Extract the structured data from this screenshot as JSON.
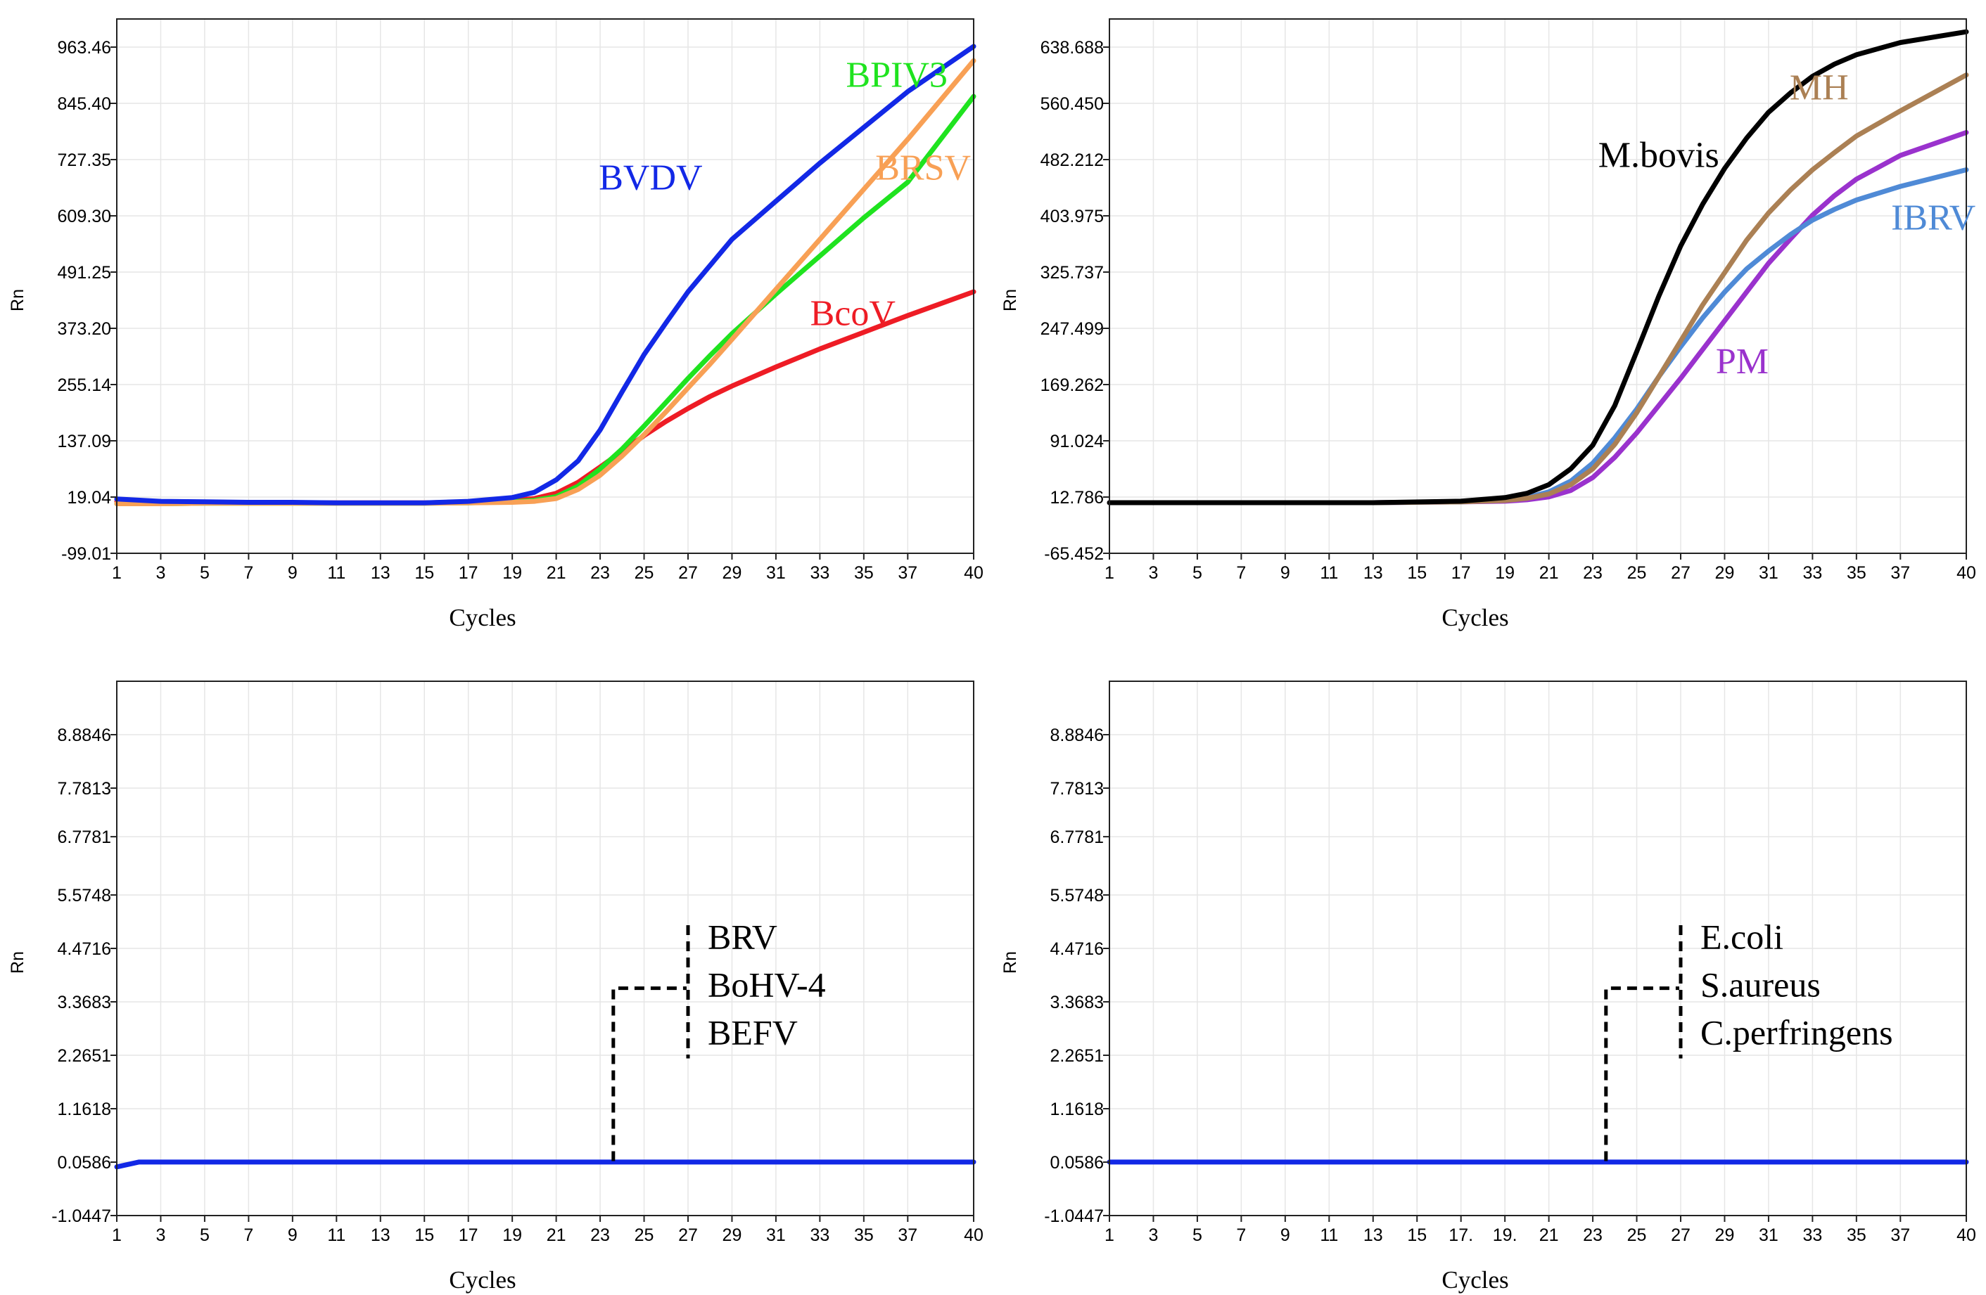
{
  "chart_data": [
    {
      "type": "line",
      "panel": "top-left",
      "xlabel": "Cycles",
      "ylabel": "Rn",
      "xlim": [
        1,
        40
      ],
      "ylim": [
        -99.01,
        1022.49
      ],
      "x_ticks": [
        1,
        3,
        5,
        7,
        9,
        11,
        13,
        15,
        17,
        19,
        21,
        23,
        25,
        27,
        29,
        31,
        33,
        35,
        37,
        40
      ],
      "y_ticks": [
        "-99.01",
        "19.04",
        "137.09",
        "255.14",
        "373.20",
        "491.25",
        "609.30",
        "727.35",
        "845.40",
        "963.46"
      ],
      "x": [
        1,
        3,
        5,
        7,
        9,
        11,
        13,
        15,
        17,
        19,
        20,
        21,
        22,
        23,
        24,
        25,
        26,
        27,
        28,
        29,
        31,
        33,
        35,
        37,
        40
      ],
      "series": [
        {
          "name": "BcoV",
          "color": "#ee1c25",
          "label_pos": [
            34.5,
            380
          ],
          "values": [
            10,
            8,
            8,
            7,
            7,
            7,
            7,
            7,
            9,
            12,
            16,
            27,
            50,
            82,
            115,
            148,
            178,
            205,
            230,
            252,
            292,
            330,
            365,
            400,
            450
          ]
        },
        {
          "name": "BPIV3",
          "color": "#1fe31f",
          "label_pos": [
            36.5,
            880
          ],
          "values": [
            5,
            5,
            6,
            6,
            6,
            6,
            6,
            6,
            7,
            9,
            12,
            20,
            42,
            78,
            120,
            168,
            218,
            268,
            316,
            362,
            445,
            525,
            605,
            680,
            860
          ]
        },
        {
          "name": "BRSV",
          "color": "#f8a055",
          "label_pos": [
            37.7,
            685
          ],
          "values": [
            5,
            5,
            6,
            6,
            6,
            6,
            6,
            6,
            7,
            8,
            10,
            16,
            35,
            65,
            105,
            150,
            198,
            248,
            298,
            350,
            455,
            560,
            665,
            770,
            935
          ]
        },
        {
          "name": "BVDV",
          "color": "#1228e6",
          "label_pos": [
            25.3,
            665
          ],
          "values": [
            15,
            10,
            9,
            8,
            8,
            7,
            7,
            7,
            10,
            18,
            29,
            55,
            95,
            160,
            240,
            318,
            385,
            450,
            505,
            560,
            640,
            720,
            795,
            870,
            965
          ]
        }
      ]
    },
    {
      "type": "line",
      "panel": "top-right",
      "xlabel": "Cycles",
      "ylabel": "Rn",
      "xlim": [
        1,
        40
      ],
      "ylim": [
        -65.452,
        677.807
      ],
      "x_ticks": [
        1,
        3,
        5,
        7,
        9,
        11,
        13,
        15,
        17,
        19,
        21,
        23,
        25,
        27,
        29,
        31,
        33,
        35,
        37,
        40
      ],
      "y_ticks": [
        "-65.452",
        "12.786",
        "91.024",
        "169.262",
        "247.499",
        "325.737",
        "403.975",
        "482.212",
        "560.450",
        "638.688"
      ],
      "x": [
        1,
        5,
        9,
        13,
        17,
        19,
        20,
        21,
        22,
        23,
        24,
        25,
        26,
        27,
        28,
        29,
        30,
        31,
        32,
        33,
        34,
        35,
        37,
        40
      ],
      "series": [
        {
          "name": "PM",
          "color": "#9a32cd",
          "label_pos": [
            29.8,
            185
          ],
          "values": [
            5,
            5,
            5,
            5,
            6,
            7,
            9,
            13,
            22,
            40,
            68,
            102,
            140,
            178,
            218,
            258,
            298,
            338,
            372,
            405,
            432,
            455,
            488,
            520
          ]
        },
        {
          "name": "IBRV",
          "color": "#4f8ad6",
          "label_pos": [
            38.5,
            385
          ],
          "values": [
            5,
            5,
            5,
            5,
            6,
            9,
            12,
            20,
            35,
            60,
            95,
            135,
            180,
            222,
            262,
            298,
            330,
            355,
            378,
            398,
            413,
            426,
            445,
            468
          ]
        },
        {
          "name": "MH",
          "color": "#ab8054",
          "label_pos": [
            33.3,
            566
          ],
          "values": [
            5,
            5,
            5,
            5,
            6,
            8,
            11,
            17,
            30,
            52,
            86,
            130,
            180,
            230,
            280,
            325,
            370,
            408,
            440,
            468,
            492,
            515,
            550,
            600
          ]
        },
        {
          "name": "M.bovis",
          "color": "#000000",
          "label_pos": [
            26.0,
            472
          ],
          "values": [
            5,
            5,
            5,
            5,
            7,
            12,
            18,
            30,
            52,
            85,
            140,
            215,
            292,
            362,
            420,
            470,
            512,
            548,
            575,
            598,
            615,
            628,
            645,
            660
          ]
        }
      ]
    },
    {
      "type": "line",
      "panel": "bottom-left",
      "xlabel": "Cycles",
      "ylabel": "Rn",
      "xlim": [
        1,
        40
      ],
      "ylim": [
        -1.0447,
        9.9879
      ],
      "x_ticks": [
        1,
        3,
        5,
        7,
        9,
        11,
        13,
        15,
        17,
        19,
        21,
        23,
        25,
        27,
        29,
        31,
        33,
        35,
        37,
        40
      ],
      "y_ticks": [
        "-1.0447",
        "0.0586",
        "1.1618",
        "2.2651",
        "3.3683",
        "4.4716",
        "5.5748",
        "6.7781",
        "7.7813",
        "8.8846"
      ],
      "x": [
        1,
        2,
        3,
        40
      ],
      "series": [
        {
          "name": "baseline",
          "color": "#1228e6",
          "values": [
            -0.04,
            0.06,
            0.06,
            0.06
          ]
        }
      ],
      "annotation": {
        "labels": [
          "BRV",
          "BoHV-4",
          "BEFV"
        ],
        "x": 23.6,
        "y_low": 0.08,
        "y_mid": 3.65,
        "bar_x": 27.0,
        "y_top": 4.95,
        "y_bottom": 2.2
      }
    },
    {
      "type": "line",
      "panel": "bottom-right",
      "xlabel": "Cycles",
      "ylabel": "Rn",
      "xlim": [
        1,
        40
      ],
      "ylim": [
        -1.0447,
        9.9879
      ],
      "x_ticks": [
        1,
        3,
        5,
        7,
        9,
        11,
        13,
        15,
        17,
        19,
        21,
        23,
        25,
        27,
        29,
        31,
        33,
        35,
        37,
        40
      ],
      "x_tick_labels": [
        "1",
        "3",
        "5",
        "7",
        "9",
        "11",
        "13",
        "15",
        "17.",
        "19.",
        "21",
        "23",
        "25",
        "27",
        "29",
        "31",
        "33",
        "35",
        "37",
        "40"
      ],
      "y_ticks": [
        "-1.0447",
        "0.0586",
        "1.1618",
        "2.2651",
        "3.3683",
        "4.4716",
        "5.5748",
        "6.7781",
        "7.7813",
        "8.8846"
      ],
      "x": [
        1,
        40
      ],
      "series": [
        {
          "name": "baseline",
          "color": "#1228e6",
          "values": [
            0.06,
            0.06
          ]
        }
      ],
      "annotation": {
        "labels": [
          "E.coli",
          "S.aureus",
          "C.perfringens"
        ],
        "x": 23.6,
        "y_low": 0.08,
        "y_mid": 3.65,
        "bar_x": 27.0,
        "y_top": 4.95,
        "y_bottom": 2.2
      }
    }
  ]
}
